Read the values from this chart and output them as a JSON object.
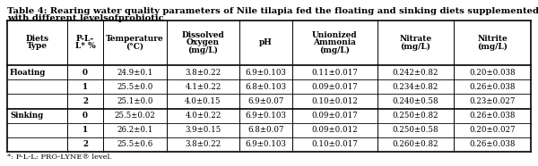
{
  "title_line1": "Table 4: Rearing water quality parameters of Nile tilapia fed the floating and sinking diets supplemented",
  "title_line2": "with different levelsofprobiotic",
  "footnote": "*: P-L-L: PRO-LYNE® level.",
  "headers_line1": [
    "Diets",
    "P-L-",
    "Temperature",
    "Dissolved",
    "pH",
    "Unionized",
    "Nitrate",
    "Nitrite"
  ],
  "headers_line2": [
    "Type",
    "L* %",
    "(°C)",
    "Oxygen",
    "",
    "Ammonia",
    "(mg/L)",
    "(mg/L)"
  ],
  "headers_line3": [
    "",
    "",
    "",
    "(mg/L)",
    "",
    "(mg/L)",
    "",
    ""
  ],
  "rows": [
    [
      "Floating",
      "0",
      "24.9±0.1",
      "3.8±0.22",
      "6.9±0.103",
      "0.11±0.017",
      "0.242±0.82",
      "0.20±0.038"
    ],
    [
      "",
      "1",
      "25.5±0.0",
      "4.1±0.22",
      "6.8±0.103",
      "0.09±0.017",
      "0.234±0.82",
      "0.26±0.038"
    ],
    [
      "",
      "2",
      "25.1±0.0",
      "4.0±0.15",
      "6.9±0.07",
      "0.10±0.012",
      "0.240±0.58",
      "0.23±0.027"
    ],
    [
      "Sinking",
      "0",
      "25.5±0.02",
      "4.0±0.22",
      "6.9±0.103",
      "0.09±0.017",
      "0.250±0.82",
      "0.26±0.038"
    ],
    [
      "",
      "1",
      "26.2±0.1",
      "3.9±0.15",
      "6.8±0.07",
      "0.09±0.012",
      "0.250±0.58",
      "0.20±0.027"
    ],
    [
      "",
      "2",
      "25.5±0.6",
      "3.8±0.22",
      "6.9±0.103",
      "0.10±0.017",
      "0.260±0.82",
      "0.26±0.038"
    ]
  ],
  "background_color": "#ffffff",
  "border_color": "#000000"
}
